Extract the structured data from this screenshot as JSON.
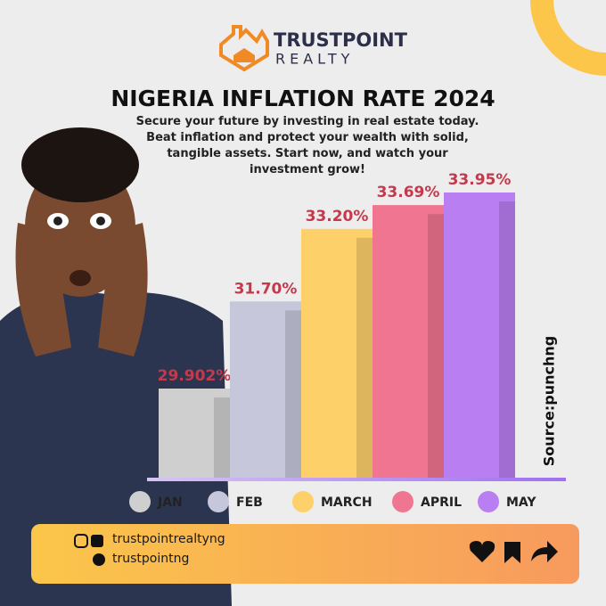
{
  "brand": {
    "name": "TRUSTPOINT",
    "tagline": "REALTY"
  },
  "chart_data": {
    "type": "bar",
    "title": "NIGERIA INFLATION RATE 2024",
    "subtitle": "Secure your future by investing in real estate today. Beat inflation and protect your wealth with solid, tangible assets. Start now, and watch your investment grow!",
    "categories": [
      "JAN",
      "FEB",
      "MARCH",
      "APRIL",
      "MAY"
    ],
    "values": [
      29.902,
      31.7,
      33.2,
      33.69,
      33.95
    ],
    "value_labels": [
      "29.902%",
      "31.70%",
      "33.20%",
      "33.69%",
      "33.95%"
    ],
    "colors": [
      "#cfcfcf",
      "#c6c7db",
      "#fdd06a",
      "#f07590",
      "#b97ef2"
    ],
    "label_color": "#c23a4c",
    "source": "Source:punchng"
  },
  "social": {
    "instagram_facebook": "trustpointrealtyng",
    "x": "trustpointng"
  }
}
